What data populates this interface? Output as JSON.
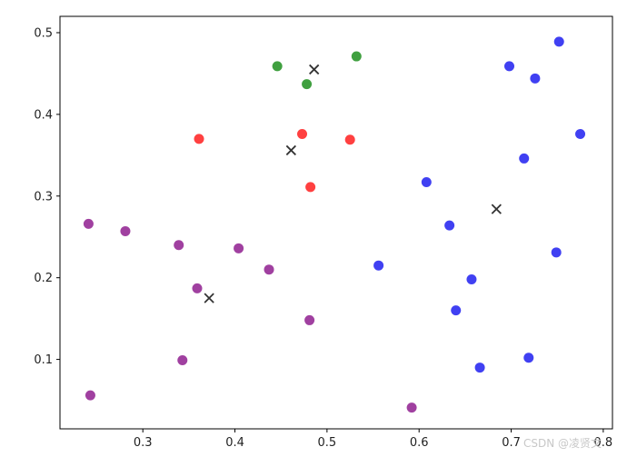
{
  "chart_data": {
    "type": "scatter",
    "title": "",
    "xlabel": "",
    "ylabel": "",
    "xlim": [
      0.21,
      0.81
    ],
    "ylim": [
      0.015,
      0.52
    ],
    "x_ticks": [
      0.3,
      0.4,
      0.5,
      0.6,
      0.7,
      0.8
    ],
    "x_tick_labels": [
      "0.3",
      "0.4",
      "0.5",
      "0.6",
      "0.7",
      "0.8"
    ],
    "y_ticks": [
      0.1,
      0.2,
      0.3,
      0.4,
      0.5
    ],
    "y_tick_labels": [
      "0.1",
      "0.2",
      "0.3",
      "0.4",
      "0.5"
    ],
    "grid": false,
    "legend": "none",
    "series": [
      {
        "color": "#0000ee",
        "marker": "circle",
        "points": [
          [
            0.752,
            0.489
          ],
          [
            0.698,
            0.459
          ],
          [
            0.726,
            0.444
          ],
          [
            0.775,
            0.376
          ],
          [
            0.714,
            0.346
          ],
          [
            0.608,
            0.317
          ],
          [
            0.633,
            0.264
          ],
          [
            0.749,
            0.231
          ],
          [
            0.556,
            0.215
          ],
          [
            0.657,
            0.198
          ],
          [
            0.64,
            0.16
          ],
          [
            0.719,
            0.102
          ],
          [
            0.666,
            0.09
          ]
        ]
      },
      {
        "color": "#008000",
        "marker": "circle",
        "points": [
          [
            0.446,
            0.459
          ],
          [
            0.478,
            0.437
          ],
          [
            0.532,
            0.471
          ]
        ]
      },
      {
        "color": "#ff0000",
        "marker": "circle",
        "points": [
          [
            0.361,
            0.37
          ],
          [
            0.473,
            0.376
          ],
          [
            0.525,
            0.369
          ],
          [
            0.482,
            0.311
          ]
        ]
      },
      {
        "color": "#800080",
        "marker": "circle",
        "points": [
          [
            0.241,
            0.266
          ],
          [
            0.281,
            0.257
          ],
          [
            0.339,
            0.24
          ],
          [
            0.404,
            0.236
          ],
          [
            0.437,
            0.21
          ],
          [
            0.359,
            0.187
          ],
          [
            0.481,
            0.148
          ],
          [
            0.343,
            0.099
          ],
          [
            0.243,
            0.056
          ],
          [
            0.592,
            0.041
          ]
        ]
      },
      {
        "color": "#333333",
        "marker": "x",
        "points": [
          [
            0.486,
            0.455
          ],
          [
            0.461,
            0.356
          ],
          [
            0.684,
            0.284
          ],
          [
            0.372,
            0.175
          ]
        ]
      }
    ],
    "marker_opacity": 0.75
  },
  "watermark": "CSDN @凌贤文"
}
